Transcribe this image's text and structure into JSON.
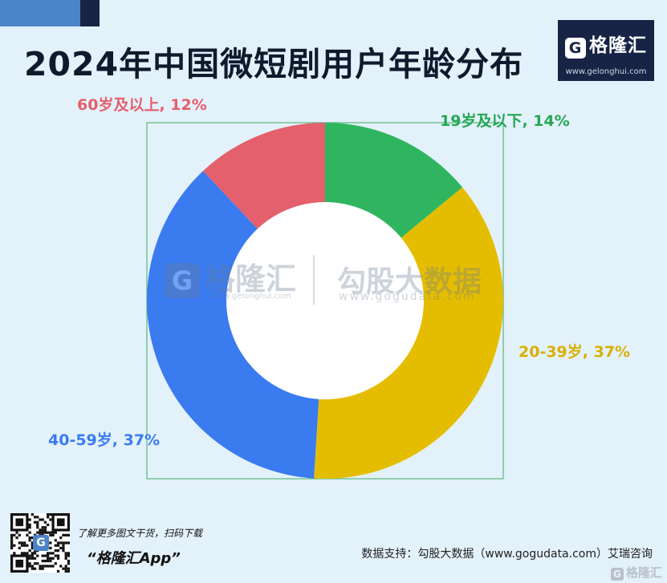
{
  "header": {
    "title": "2024年中国微短剧用户年龄分布"
  },
  "brand": {
    "logo_letter": "G",
    "name": "格隆汇",
    "url": "www.gelonghui.com"
  },
  "watermark": {
    "logo_letter": "G",
    "name1": "格隆汇",
    "url1": "www.gelonghui.com",
    "name2": "勾股大数据",
    "url2": "www.gogudata.com"
  },
  "chart_data": {
    "type": "pie",
    "title": "2024年中国微短剧用户年龄分布",
    "slices": [
      {
        "label": "19岁及以下, 14%",
        "value": 14,
        "color": "#2fb55f"
      },
      {
        "label": "20-39岁, 37%",
        "value": 37,
        "color": "#e5bd00"
      },
      {
        "label": "40-59岁, 37%",
        "value": 37,
        "color": "#3a7bf0"
      },
      {
        "label": "60岁及以上, 12%",
        "value": 12,
        "color": "#e4606c"
      }
    ],
    "label_colors": [
      "#24a853",
      "#d9b000",
      "#3a7bf0",
      "#e4606c"
    ]
  },
  "footer": {
    "qr_logo_letter": "G",
    "promo_line1": "了解更多图文干货，扫码下载",
    "promo_line2": "“格隆汇App”",
    "source": "数据支持：勾股大数据（www.gogudata.com）艾瑞咨询",
    "logo_letter": "G",
    "logo_text": "格隆汇"
  },
  "colors": {
    "background": "#e3f1fb",
    "brand_navy": "#172446",
    "brand_blue": "#4a84c9",
    "ring_shadow": "#9fe0c4",
    "box_border": "#57b97a"
  },
  "icons": {
    "brand_logo": "gelonghui-logo-icon",
    "qr_code": "qr-code-icon"
  }
}
